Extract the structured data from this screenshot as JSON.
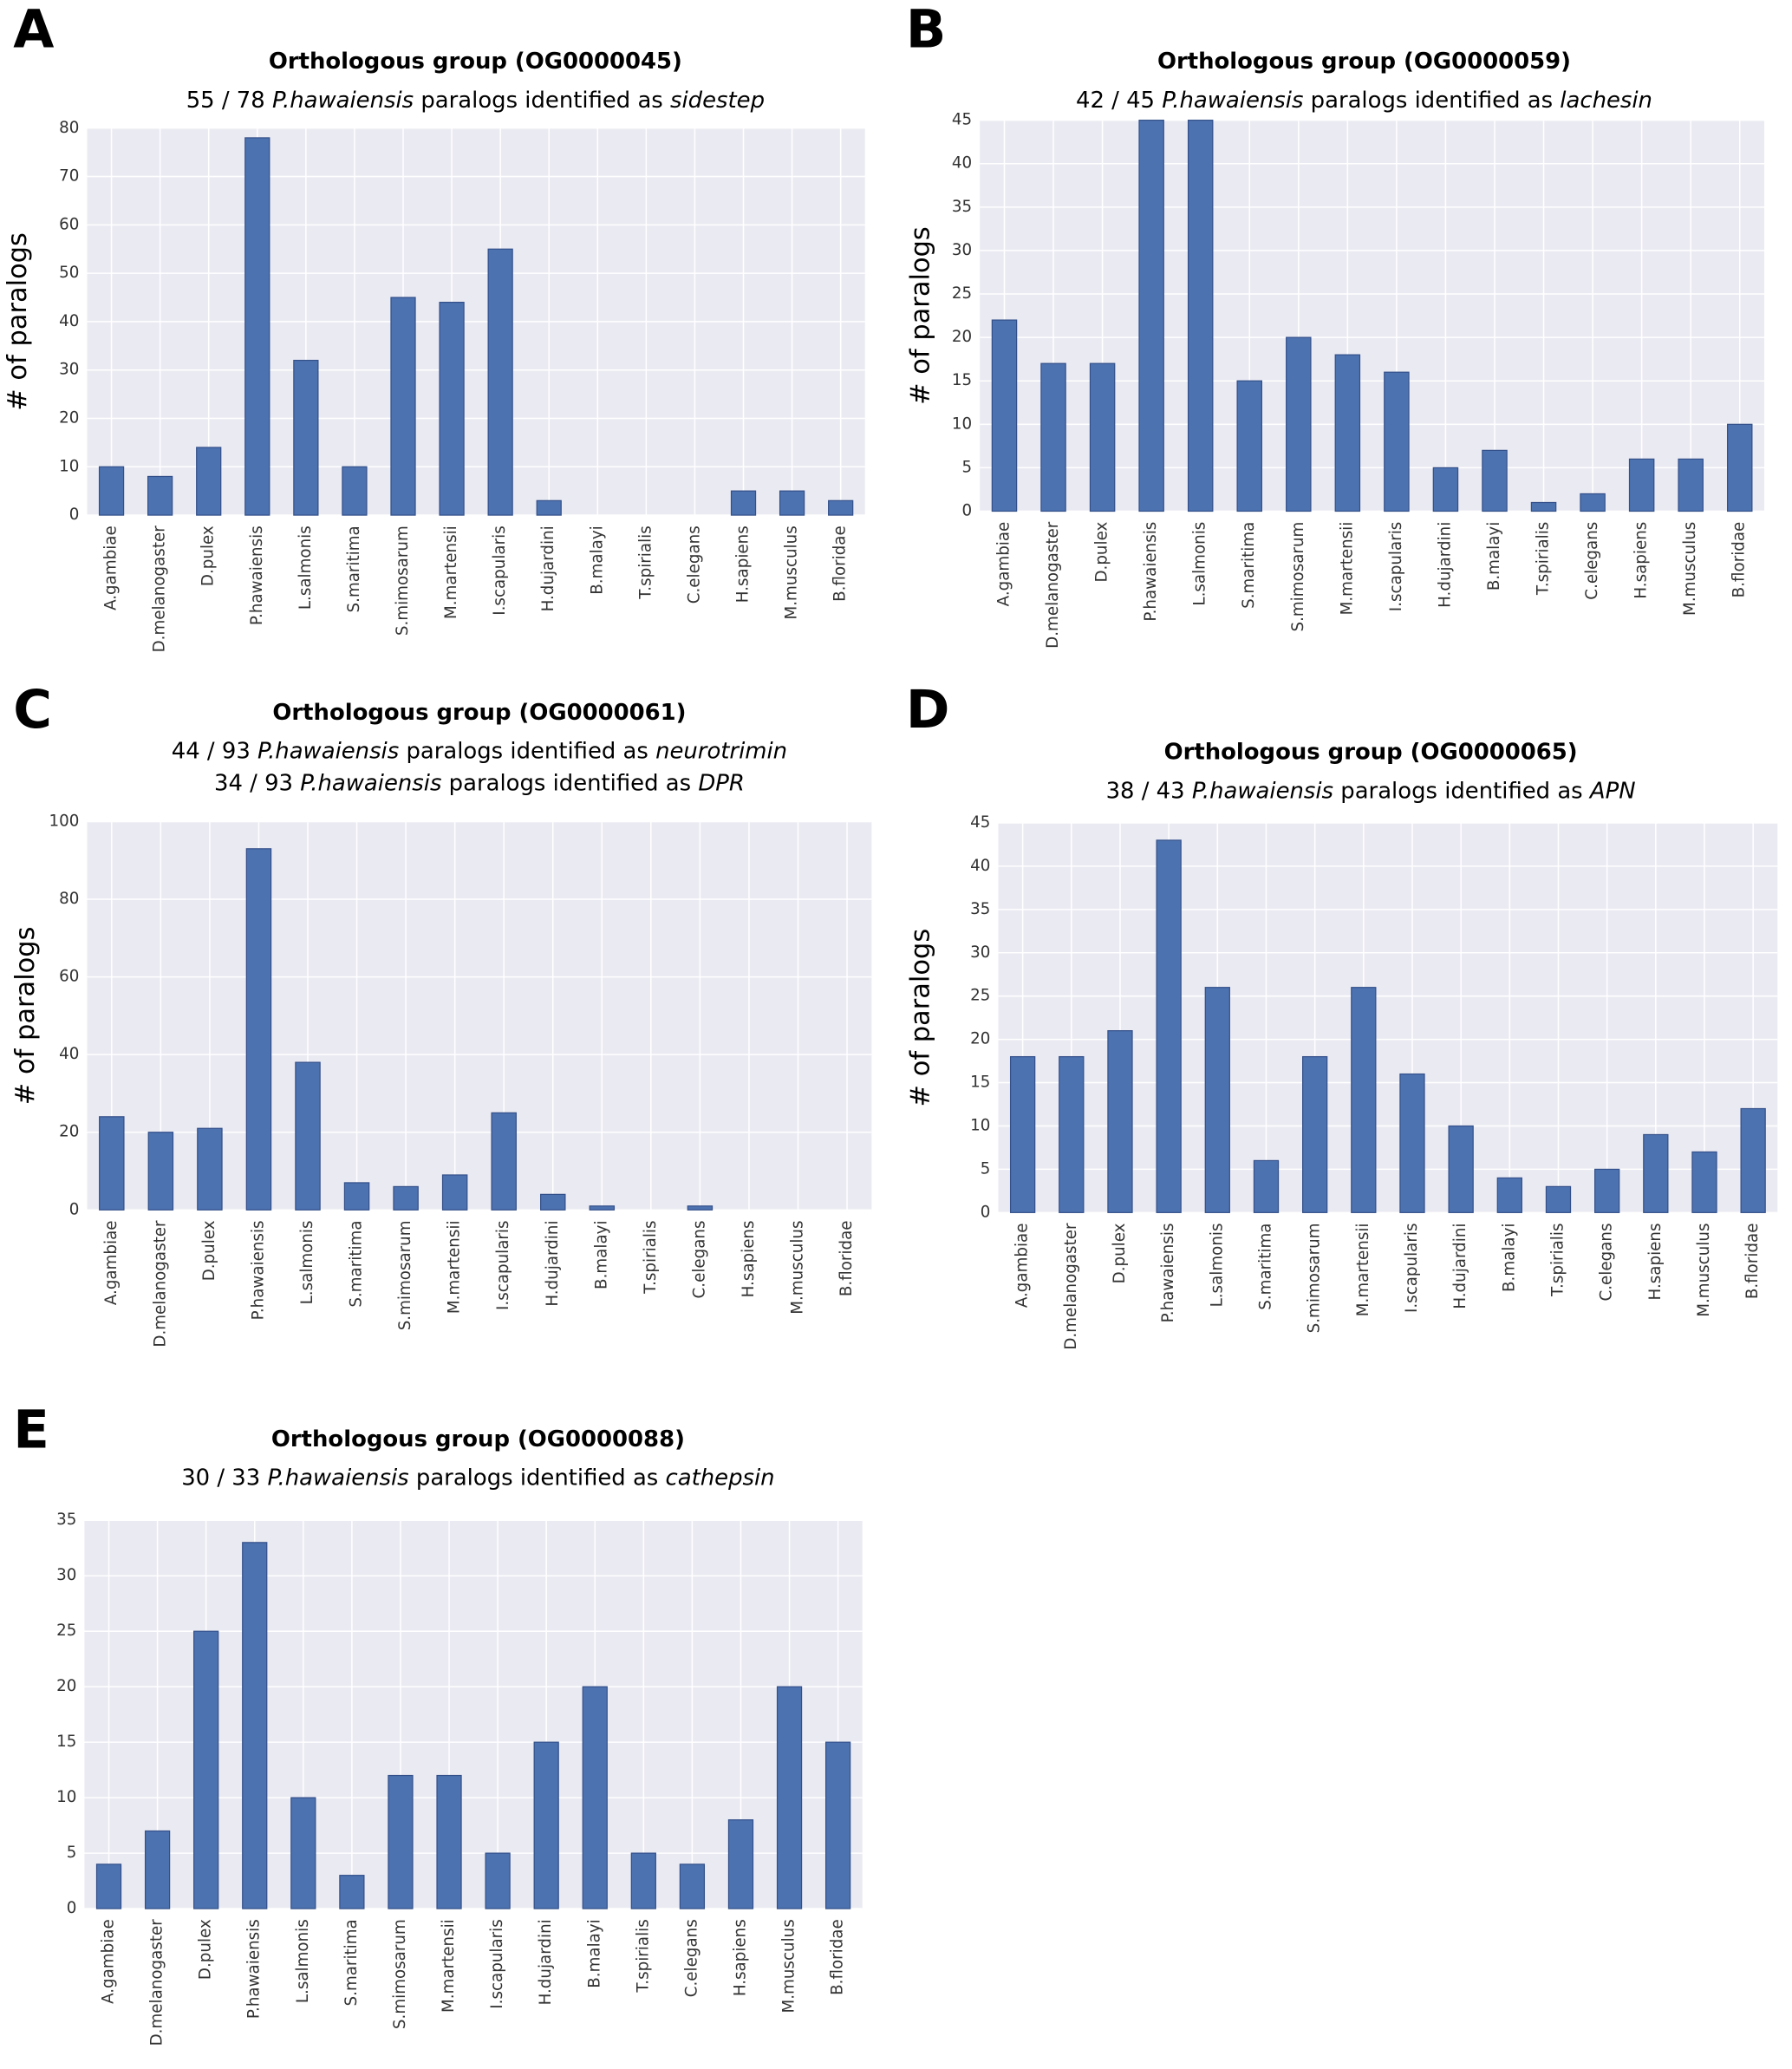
{
  "chart_data": [
    {
      "type": "bar",
      "panel": "A",
      "title": "Orthologous group (OG0000045)",
      "subtitle": [
        [
          "55 / 78 ",
          "P.hawaiensis",
          " paralogs identified as ",
          "sidestep"
        ]
      ],
      "ylabel": "# of paralogs",
      "color": "#4c72b0",
      "grid": true,
      "categories": [
        "A.gambiae",
        "D.melanogaster",
        "D.pulex",
        "P.hawaiensis",
        "L.salmonis",
        "S.maritima",
        "S.mimosarum",
        "M.martensii",
        "I.scapularis",
        "H.dujardini",
        "B.malayi",
        "T.spirialis",
        "C.elegans",
        "H.sapiens",
        "M.musculus",
        "B.floridae"
      ],
      "values": [
        10,
        8,
        14,
        78,
        32,
        10,
        45,
        44,
        55,
        3,
        0,
        0,
        0,
        5,
        5,
        3
      ],
      "ylim": [
        0,
        80
      ],
      "yticks": [
        0,
        10,
        20,
        30,
        40,
        50,
        60,
        70,
        80
      ]
    },
    {
      "type": "bar",
      "panel": "B",
      "title": "Orthologous group (OG0000059)",
      "subtitle": [
        [
          "42 / 45 ",
          "P.hawaiensis",
          " paralogs identified as ",
          "lachesin"
        ]
      ],
      "ylabel": "# of paralogs",
      "color": "#4c72b0",
      "grid": true,
      "categories": [
        "A.gambiae",
        "D.melanogaster",
        "D.pulex",
        "P.hawaiensis",
        "L.salmonis",
        "S.maritima",
        "S.mimosarum",
        "M.martensii",
        "I.scapularis",
        "H.dujardini",
        "B.malayi",
        "T.spirialis",
        "C.elegans",
        "H.sapiens",
        "M.musculus",
        "B.floridae"
      ],
      "values": [
        22,
        17,
        17,
        45,
        45,
        15,
        20,
        18,
        16,
        5,
        7,
        1,
        2,
        6,
        6,
        10
      ],
      "ylim": [
        0,
        45
      ],
      "yticks": [
        0,
        5,
        10,
        15,
        20,
        25,
        30,
        35,
        40,
        45
      ]
    },
    {
      "type": "bar",
      "panel": "C",
      "title": "Orthologous group (OG0000061)",
      "subtitle": [
        [
          "44 / 93 ",
          "P.hawaiensis",
          " paralogs identified as ",
          "neurotrimin"
        ],
        [
          "34 / 93 ",
          "P.hawaiensis",
          " paralogs identified as ",
          "DPR"
        ]
      ],
      "ylabel": "# of paralogs",
      "color": "#4c72b0",
      "grid": true,
      "categories": [
        "A.gambiae",
        "D.melanogaster",
        "D.pulex",
        "P.hawaiensis",
        "L.salmonis",
        "S.maritima",
        "S.mimosarum",
        "M.martensii",
        "I.scapularis",
        "H.dujardini",
        "B.malayi",
        "T.spirialis",
        "C.elegans",
        "H.sapiens",
        "M.musculus",
        "B.floridae"
      ],
      "values": [
        24,
        20,
        21,
        93,
        38,
        7,
        6,
        9,
        25,
        4,
        1,
        0,
        1,
        0,
        0,
        0
      ],
      "ylim": [
        0,
        100
      ],
      "yticks": [
        0,
        20,
        40,
        60,
        80,
        100
      ]
    },
    {
      "type": "bar",
      "panel": "D",
      "title": "Orthologous group (OG0000065)",
      "subtitle": [
        [
          "38 / 43 ",
          "P.hawaiensis",
          " paralogs identified as ",
          "APN"
        ]
      ],
      "ylabel": "# of paralogs",
      "color": "#4c72b0",
      "grid": true,
      "categories": [
        "A.gambiae",
        "D.melanogaster",
        "D.pulex",
        "P.hawaiensis",
        "L.salmonis",
        "S.maritima",
        "S.mimosarum",
        "M.martensii",
        "I.scapularis",
        "H.dujardini",
        "B.malayi",
        "T.spirialis",
        "C.elegans",
        "H.sapiens",
        "M.musculus",
        "B.floridae"
      ],
      "values": [
        18,
        18,
        21,
        43,
        26,
        6,
        18,
        26,
        16,
        10,
        4,
        3,
        5,
        9,
        7,
        12
      ],
      "ylim": [
        0,
        45
      ],
      "yticks": [
        0,
        5,
        10,
        15,
        20,
        25,
        30,
        35,
        40,
        45
      ]
    },
    {
      "type": "bar",
      "panel": "E",
      "title": "Orthologous group (OG0000088)",
      "subtitle": [
        [
          "30 / 33 ",
          "P.hawaiensis",
          " paralogs identified as ",
          "cathepsin"
        ]
      ],
      "color": "#4c72b0",
      "grid": true,
      "categories": [
        "A.gambiae",
        "D.melanogaster",
        "D.pulex",
        "P.hawaiensis",
        "L.salmonis",
        "S.maritima",
        "S.mimosarum",
        "M.martensii",
        "I.scapularis",
        "H.dujardini",
        "B.malayi",
        "T.spirialis",
        "C.elegans",
        "H.sapiens",
        "M.musculus",
        "B.floridae"
      ],
      "values": [
        4,
        7,
        25,
        33,
        10,
        3,
        12,
        12,
        5,
        15,
        20,
        5,
        4,
        8,
        20,
        15
      ],
      "ylim": [
        0,
        35
      ],
      "yticks": [
        0,
        5,
        10,
        15,
        20,
        25,
        30,
        35
      ]
    }
  ]
}
